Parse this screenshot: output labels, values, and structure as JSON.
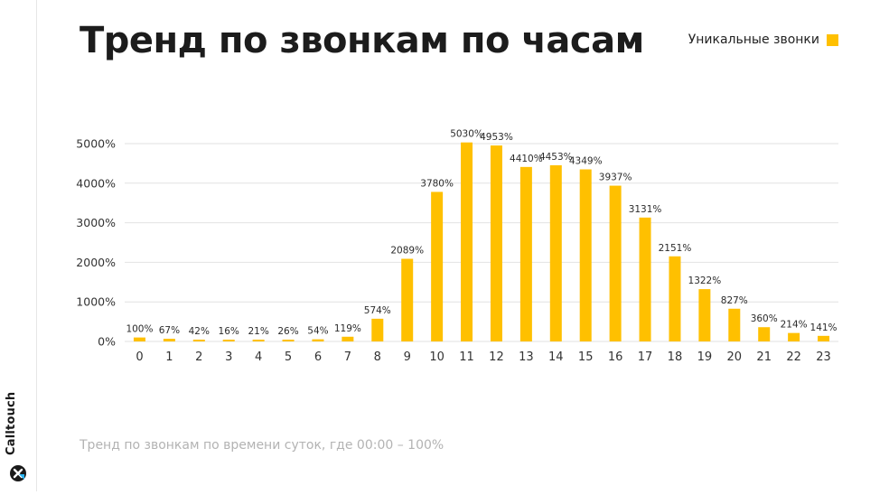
{
  "title": "Тренд по звонкам по часам",
  "footnote": "Тренд по звонкам по времени суток, где 00:00 – 100%",
  "brand": {
    "name": "Calltouch",
    "logo_icon": "calltouch-logo-icon"
  },
  "colors": {
    "bar": "#ffc000",
    "grid": "#e2e2e2",
    "text": "#2b2b2b",
    "axis_text": "#333333"
  },
  "chart_data": {
    "type": "bar",
    "categories": [
      "0",
      "1",
      "2",
      "3",
      "4",
      "5",
      "6",
      "7",
      "8",
      "9",
      "10",
      "11",
      "12",
      "13",
      "14",
      "15",
      "16",
      "17",
      "18",
      "19",
      "20",
      "21",
      "22",
      "23"
    ],
    "series": [
      {
        "name": "Уникальные звонки",
        "values": [
          100,
          67,
          42,
          16,
          21,
          26,
          54,
          119,
          574,
          2089,
          3780,
          5030,
          4953,
          4410,
          4453,
          4349,
          3937,
          3131,
          2151,
          1322,
          827,
          360,
          214,
          141
        ],
        "labels": [
          "100%",
          "67%",
          "42%",
          "16%",
          "21%",
          "26%",
          "54%",
          "119%",
          "574%",
          "2089%",
          "3780%",
          "5030%",
          "4953%",
          "4410%",
          "4453%",
          "4349%",
          "3937%",
          "3131%",
          "2151%",
          "1322%",
          "827%",
          "360%",
          "214%",
          "141%"
        ]
      }
    ],
    "y_ticks": [
      0,
      1000,
      2000,
      3000,
      4000,
      5000
    ],
    "y_tick_labels": [
      "0%",
      "1000%",
      "2000%",
      "3000%",
      "4000%",
      "5000%"
    ],
    "ylim": [
      0,
      5000
    ],
    "grid": true,
    "legend_position": "top-right"
  }
}
